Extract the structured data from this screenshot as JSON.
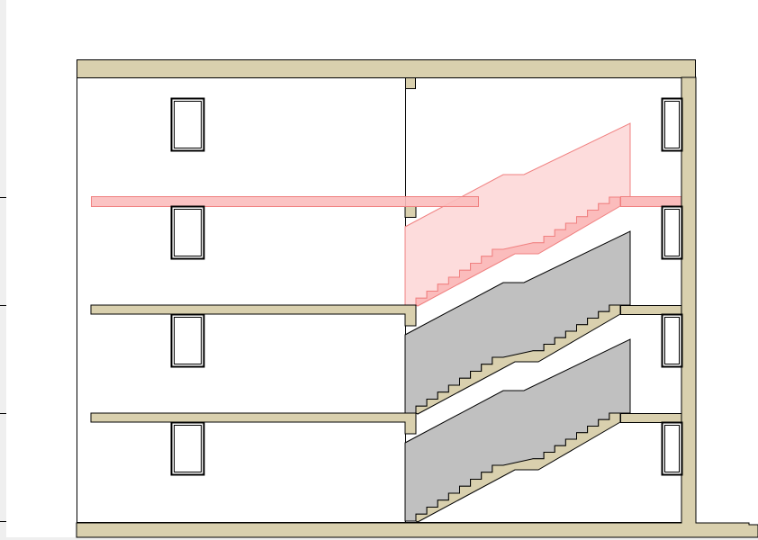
{
  "drawing": {
    "view": "building-section",
    "floors": 4,
    "stair_flights_per_floor": 2,
    "colors": {
      "structure": "#d9d0ae",
      "outline": "#000000",
      "far_stair": "#c0c0c0",
      "highlight_fill": "#fddcdc",
      "highlight_solid": "#fbbcbc",
      "highlight_stroke": "#f08080",
      "highlight_slab": "#fbbcbc",
      "background": "#ffffff",
      "margin": "#efefef"
    },
    "icons": [
      "window-symbol"
    ]
  }
}
